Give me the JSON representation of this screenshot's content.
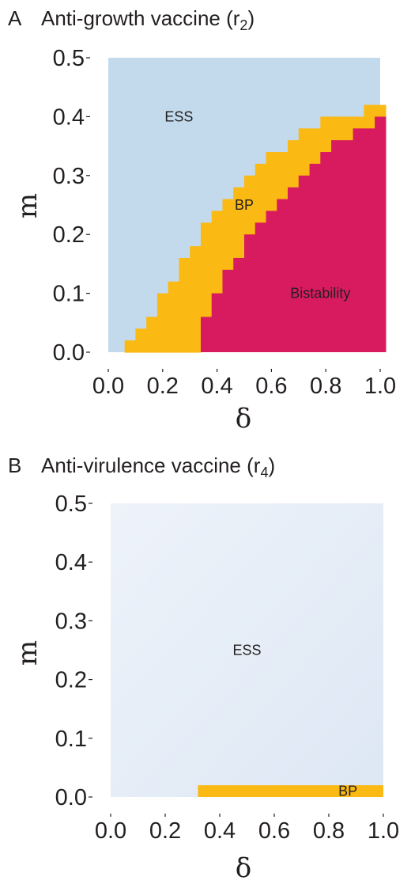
{
  "chart_data": [
    {
      "type": "heatmap",
      "panel_letter": "A",
      "title_main": "Anti-growth vaccine (r",
      "title_sub": "2",
      "title_end": ")",
      "xlabel": "δ",
      "ylabel": "m",
      "xlim": [
        0.0,
        1.0
      ],
      "ylim": [
        0.0,
        0.5
      ],
      "x_ticks": [
        "0.0",
        "0.2",
        "0.4",
        "0.6",
        "0.8",
        "1.0"
      ],
      "y_ticks": [
        "0.0",
        "0.1",
        "0.2",
        "0.3",
        "0.4",
        "0.5"
      ],
      "cell_size": {
        "delta": 0.04,
        "m": 0.02
      },
      "colors": {
        "ESS": "#c3d9ec",
        "BP": "#fbb913",
        "Bistability": "#d81b5f"
      },
      "region_labels": [
        {
          "text": "ESS",
          "delta": 0.26,
          "m": 0.4
        },
        {
          "text": "BP",
          "delta": 0.5,
          "m": 0.25
        },
        {
          "text": "Bistability",
          "delta": 0.78,
          "m": 0.1
        }
      ],
      "columns": [
        {
          "delta": 0.04,
          "bp_low": 0.0,
          "bp_high": 0.0,
          "bistable_high": 0.0
        },
        {
          "delta": 0.08,
          "bp_low": 0.0,
          "bp_high": 0.02,
          "bistable_high": 0.0
        },
        {
          "delta": 0.12,
          "bp_low": 0.0,
          "bp_high": 0.04,
          "bistable_high": 0.0
        },
        {
          "delta": 0.16,
          "bp_low": 0.0,
          "bp_high": 0.06,
          "bistable_high": 0.0
        },
        {
          "delta": 0.2,
          "bp_low": 0.0,
          "bp_high": 0.1,
          "bistable_high": 0.0
        },
        {
          "delta": 0.24,
          "bp_low": 0.0,
          "bp_high": 0.12,
          "bistable_high": 0.0
        },
        {
          "delta": 0.28,
          "bp_low": 0.0,
          "bp_high": 0.16,
          "bistable_high": 0.0
        },
        {
          "delta": 0.32,
          "bp_low": 0.0,
          "bp_high": 0.18,
          "bistable_high": 0.0
        },
        {
          "delta": 0.36,
          "bp_low": 0.06,
          "bp_high": 0.22,
          "bistable_high": 0.06
        },
        {
          "delta": 0.4,
          "bp_low": 0.1,
          "bp_high": 0.24,
          "bistable_high": 0.1
        },
        {
          "delta": 0.44,
          "bp_low": 0.14,
          "bp_high": 0.26,
          "bistable_high": 0.14
        },
        {
          "delta": 0.48,
          "bp_low": 0.16,
          "bp_high": 0.28,
          "bistable_high": 0.16
        },
        {
          "delta": 0.52,
          "bp_low": 0.2,
          "bp_high": 0.3,
          "bistable_high": 0.2
        },
        {
          "delta": 0.56,
          "bp_low": 0.22,
          "bp_high": 0.32,
          "bistable_high": 0.22
        },
        {
          "delta": 0.6,
          "bp_low": 0.24,
          "bp_high": 0.34,
          "bistable_high": 0.24
        },
        {
          "delta": 0.64,
          "bp_low": 0.26,
          "bp_high": 0.34,
          "bistable_high": 0.26
        },
        {
          "delta": 0.68,
          "bp_low": 0.28,
          "bp_high": 0.36,
          "bistable_high": 0.28
        },
        {
          "delta": 0.72,
          "bp_low": 0.3,
          "bp_high": 0.38,
          "bistable_high": 0.3
        },
        {
          "delta": 0.76,
          "bp_low": 0.32,
          "bp_high": 0.38,
          "bistable_high": 0.32
        },
        {
          "delta": 0.8,
          "bp_low": 0.34,
          "bp_high": 0.4,
          "bistable_high": 0.34
        },
        {
          "delta": 0.84,
          "bp_low": 0.36,
          "bp_high": 0.4,
          "bistable_high": 0.36
        },
        {
          "delta": 0.88,
          "bp_low": 0.36,
          "bp_high": 0.4,
          "bistable_high": 0.36
        },
        {
          "delta": 0.92,
          "bp_low": 0.38,
          "bp_high": 0.4,
          "bistable_high": 0.38
        },
        {
          "delta": 0.96,
          "bp_low": 0.38,
          "bp_high": 0.42,
          "bistable_high": 0.38
        },
        {
          "delta": 1.0,
          "bp_low": 0.4,
          "bp_high": 0.42,
          "bistable_high": 0.4
        }
      ]
    },
    {
      "type": "heatmap",
      "panel_letter": "B",
      "title_main": "Anti-virulence vaccine (r",
      "title_sub": "4",
      "title_end": ")",
      "xlabel": "δ",
      "ylabel": "m",
      "xlim": [
        0.0,
        1.0
      ],
      "ylim": [
        0.0,
        0.5
      ],
      "x_ticks": [
        "0.0",
        "0.2",
        "0.4",
        "0.6",
        "0.8",
        "1.0"
      ],
      "y_ticks": [
        "0.0",
        "0.1",
        "0.2",
        "0.3",
        "0.4",
        "0.5"
      ],
      "colors": {
        "ESS_light": "#eef3fa",
        "ESS_dark": "#dde7f4",
        "BP": "#fbb913"
      },
      "regions": [
        {
          "name": "ESS",
          "delta_range": [
            0.0,
            1.0
          ],
          "m_range": [
            0.0,
            0.5
          ]
        },
        {
          "name": "BP",
          "delta_range": [
            0.32,
            1.0
          ],
          "m_range": [
            0.0,
            0.02
          ]
        }
      ],
      "region_labels": [
        {
          "text": "ESS",
          "delta": 0.5,
          "m": 0.25
        },
        {
          "text": "BP",
          "delta": 0.87,
          "m": 0.01
        }
      ]
    }
  ]
}
